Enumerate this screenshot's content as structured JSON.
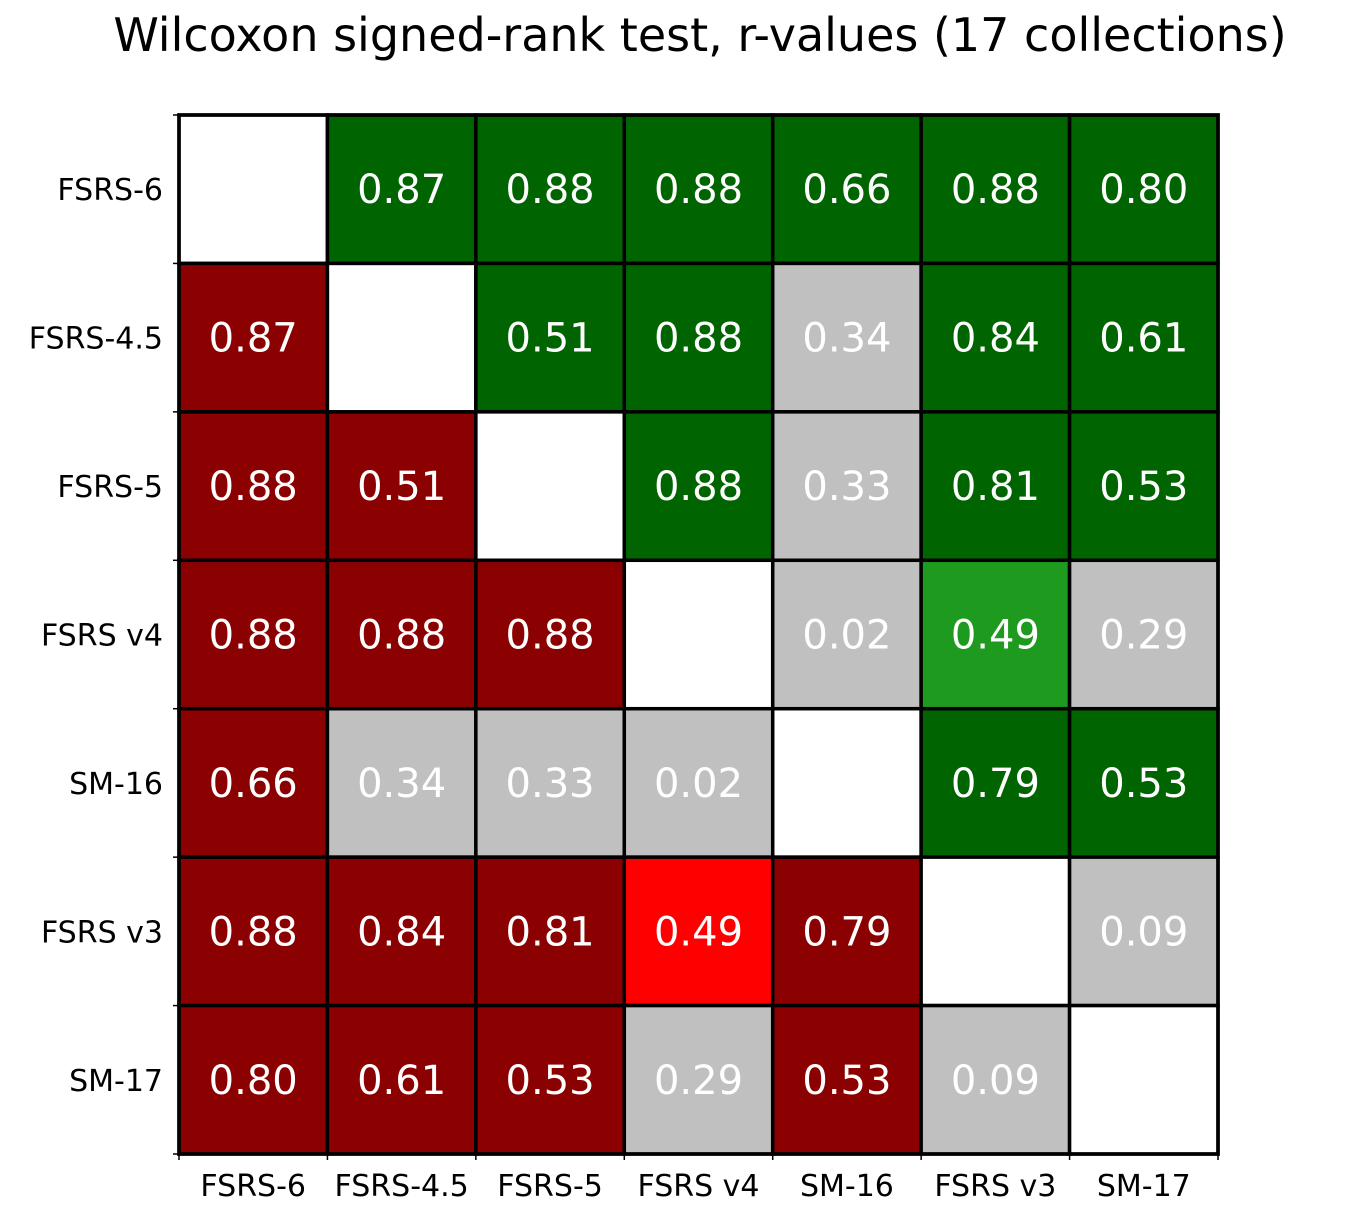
{
  "chart_data": {
    "type": "heatmap",
    "title": "Wilcoxon signed-rank test, r-values (17 collections)",
    "rows": [
      "FSRS-6",
      "FSRS-4.5",
      "FSRS-5",
      "FSRS v4",
      "SM-16",
      "FSRS v3",
      "SM-17"
    ],
    "columns": [
      "FSRS-6",
      "FSRS-4.5",
      "FSRS-5",
      "FSRS v4",
      "SM-16",
      "FSRS v3",
      "SM-17"
    ],
    "values": [
      [
        null,
        "0.87",
        "0.88",
        "0.88",
        "0.66",
        "0.88",
        "0.80"
      ],
      [
        "0.87",
        null,
        "0.51",
        "0.88",
        "0.34",
        "0.84",
        "0.61"
      ],
      [
        "0.88",
        "0.51",
        null,
        "0.88",
        "0.33",
        "0.81",
        "0.53"
      ],
      [
        "0.88",
        "0.88",
        "0.88",
        null,
        "0.02",
        "0.49",
        "0.29"
      ],
      [
        "0.66",
        "0.34",
        "0.33",
        "0.02",
        null,
        "0.79",
        "0.53"
      ],
      [
        "0.88",
        "0.84",
        "0.81",
        "0.49",
        "0.79",
        null,
        "0.09"
      ],
      [
        "0.80",
        "0.61",
        "0.53",
        "0.29",
        "0.53",
        "0.09",
        null
      ]
    ],
    "cell_colors": [
      [
        "diagonal",
        "dark-green",
        "dark-green",
        "dark-green",
        "dark-green",
        "dark-green",
        "dark-green"
      ],
      [
        "dark-red",
        "diagonal",
        "dark-green",
        "dark-green",
        "gray",
        "dark-green",
        "dark-green"
      ],
      [
        "dark-red",
        "dark-red",
        "diagonal",
        "dark-green",
        "gray",
        "dark-green",
        "dark-green"
      ],
      [
        "dark-red",
        "dark-red",
        "dark-red",
        "diagonal",
        "gray",
        "green",
        "gray"
      ],
      [
        "dark-red",
        "gray",
        "gray",
        "gray",
        "diagonal",
        "dark-green",
        "dark-green"
      ],
      [
        "dark-red",
        "dark-red",
        "dark-red",
        "red",
        "dark-red",
        "diagonal",
        "gray"
      ],
      [
        "dark-red",
        "dark-red",
        "dark-red",
        "gray",
        "dark-red",
        "gray",
        "diagonal"
      ]
    ],
    "palette": {
      "dark-green": "#006400",
      "green": "#1e9a1e",
      "dark-red": "#8b0000",
      "red": "#ff0000",
      "gray": "#c0c0c0",
      "diagonal": "#ffffff"
    },
    "grid": true,
    "legend": "none"
  }
}
